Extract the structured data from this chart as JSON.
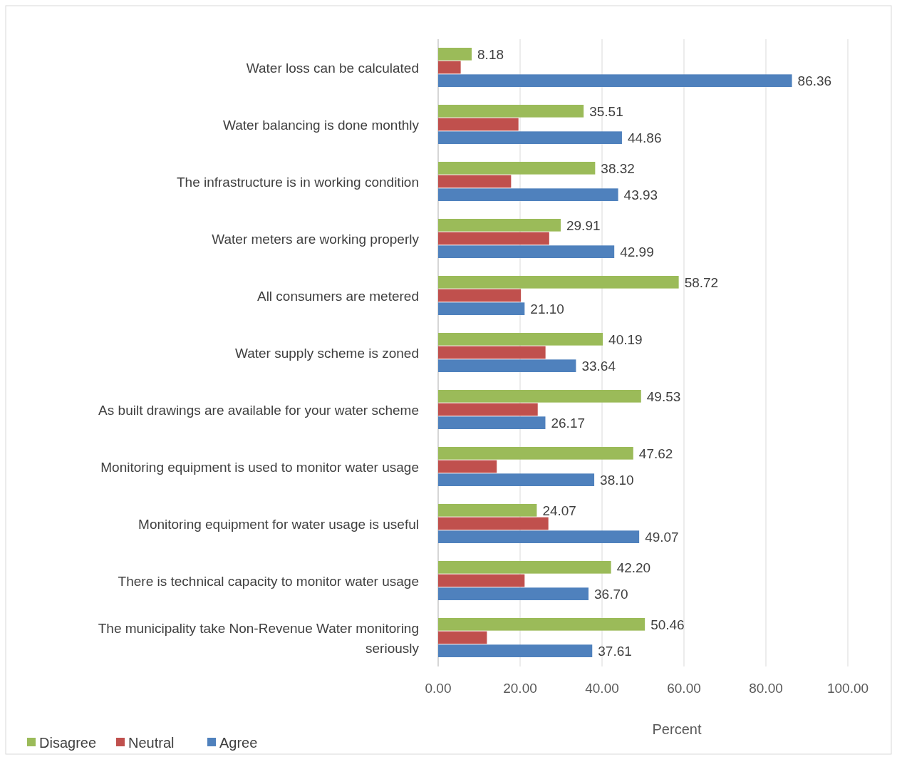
{
  "chart_data": {
    "type": "bar",
    "orientation": "horizontal",
    "xlabel": "Percent",
    "categories": [
      "Water loss can be calculated",
      "Water balancing is done monthly",
      "The infrastructure is in working condition",
      "Water meters are working properly",
      "All consumers are metered",
      "Water supply scheme is zoned",
      "As built drawings are  available for your water scheme",
      "Monitoring equipment is used to monitor water usage",
      "Monitoring equipment for water usage is useful",
      "There is technical capacity to monitor water usage",
      "The municipality take Non-Revenue Water monitoring seriously"
    ],
    "series": [
      {
        "name": "Disagree",
        "color": "#9bbb59",
        "values": [
          8.18,
          35.51,
          38.32,
          29.91,
          58.72,
          40.19,
          49.53,
          47.62,
          24.07,
          42.2,
          50.46
        ],
        "value_labels": [
          "8.18",
          "35.51",
          "38.32",
          "29.91",
          "58.72",
          "40.19",
          "49.53",
          "47.62",
          "24.07",
          "42.20",
          "50.46"
        ]
      },
      {
        "name": "Neutral",
        "color": "#c0504d",
        "values": [
          5.5,
          19.6,
          17.8,
          27.1,
          20.2,
          26.2,
          24.3,
          14.3,
          26.9,
          21.1,
          11.9
        ]
      },
      {
        "name": "Agree",
        "color": "#4f81bd",
        "values": [
          86.36,
          44.86,
          43.93,
          42.99,
          21.1,
          33.64,
          26.17,
          38.1,
          49.07,
          36.7,
          37.61
        ],
        "value_labels": [
          "86.36",
          "44.86",
          "43.93",
          "42.99",
          "21.10",
          "33.64",
          "26.17",
          "38.10",
          "49.07",
          "36.70",
          "37.61"
        ]
      }
    ],
    "xlim": [
      0,
      100
    ],
    "xticks": [
      {
        "value": 0,
        "label": "0.00"
      },
      {
        "value": 20,
        "label": "20.00"
      },
      {
        "value": 40,
        "label": "40.00"
      },
      {
        "value": 60,
        "label": "60.00"
      },
      {
        "value": 80,
        "label": "80.00"
      },
      {
        "value": 100,
        "label": "100.00"
      }
    ],
    "grid": "x",
    "legend": "bottom left"
  }
}
